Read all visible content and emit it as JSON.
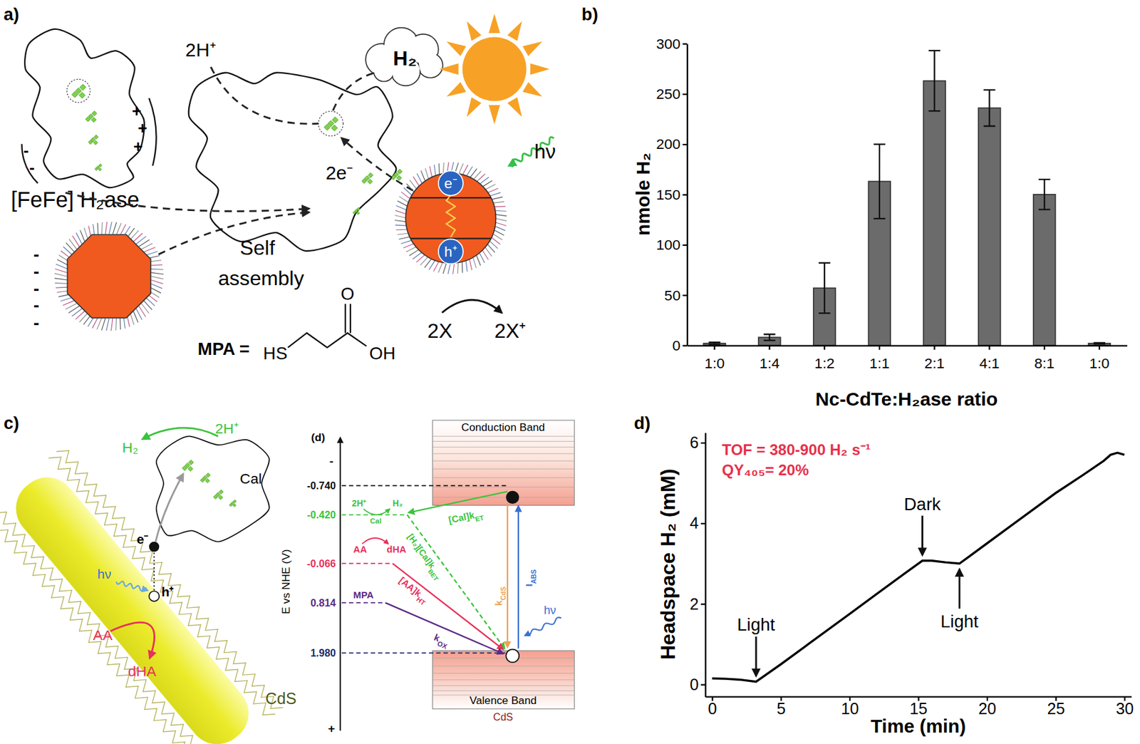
{
  "panel_labels": [
    "a)",
    "b)",
    "c)",
    "d)"
  ],
  "chart_data": [
    {
      "type": "bar",
      "categories": [
        "1:0",
        "1:4",
        "1:2",
        "1:1",
        "2:1",
        "4:1",
        "8:1",
        "1:0"
      ],
      "values": [
        2,
        8,
        57,
        163,
        263,
        236,
        150,
        2
      ],
      "errors": [
        1,
        3,
        25,
        37,
        30,
        18,
        15,
        0.5
      ],
      "color": "#6b6b6b",
      "x_label": "Nc-CdTe:H₂ase ratio",
      "y_label": "nmole H₂",
      "ylim": [
        0,
        300
      ],
      "yticks": [
        0,
        50,
        100,
        150,
        200,
        250,
        300
      ]
    },
    {
      "type": "line",
      "x": [
        0,
        1,
        2,
        3.2,
        5,
        7,
        10,
        12,
        14,
        15.3,
        16,
        17,
        18,
        20,
        22,
        25,
        27,
        28.5,
        29,
        29.5,
        30
      ],
      "values": [
        0.15,
        0.14,
        0.12,
        0.07,
        0.5,
        1.0,
        1.75,
        2.25,
        2.75,
        3.07,
        3.07,
        3.03,
        3.0,
        3.5,
        4.0,
        4.75,
        5.2,
        5.55,
        5.7,
        5.75,
        5.7
      ],
      "color": "#000000",
      "x_label": "Time (min)",
      "y_label": "Headspace H₂ (mM)",
      "xlim": [
        -0.5,
        30.5
      ],
      "ylim": [
        -0.3,
        6.25
      ],
      "xticks": [
        0,
        5,
        10,
        15,
        20,
        25,
        30
      ],
      "yticks": [
        0,
        2,
        4,
        6
      ],
      "annotations": [
        {
          "text": "Light",
          "x": 3.2,
          "y": 0.07
        },
        {
          "text": "Dark",
          "x": 15.3,
          "y": 3.07
        },
        {
          "text": "Light",
          "x": 18,
          "y": 3.0
        }
      ],
      "notes": [
        "TOF = 380-900 H₂ s⁻¹",
        "QY₄₀₅= 20%"
      ]
    }
  ],
  "diagram_a": {
    "enzyme": "[FeFe] H₂ase",
    "enzyme_charges": [
      "+",
      "+",
      "+",
      "-",
      "-"
    ],
    "particle_charges": [
      "-",
      "-",
      "-",
      "-",
      "-"
    ],
    "assembly": [
      "Self",
      "assembly"
    ],
    "protons": "2H⁺",
    "product": "H₂",
    "electrons": "2e⁻",
    "electron": "e⁻",
    "hole": "h⁺",
    "photon": "hν",
    "donor": "2X",
    "donor_oxidized": "2X⁺",
    "ligand_label": "MPA =",
    "ligand_atoms": [
      "HS",
      "O",
      "OH"
    ]
  },
  "diagram_c": {
    "product": "H₂",
    "protons": "2H⁺",
    "enzyme": "Cal",
    "electron": "e⁻",
    "photon": "hν",
    "hole": "h⁺",
    "donor": "AA",
    "donor_oxidized": "dHA",
    "rod": "CdS",
    "energy": {
      "tag": "(d)",
      "axis_label": "E vs NHE (V)",
      "axis_ends": [
        "-",
        "+"
      ],
      "levels": [
        "-0.740",
        "-0.420",
        "-0.066",
        "0.814",
        "1.980"
      ],
      "conduction_band": "Conduction Band",
      "valence_band": "Valence Band",
      "material": "CdS",
      "enzyme_reaction": [
        "2H⁺",
        "Cal",
        "H₂"
      ],
      "donor_reaction": [
        "AA",
        "dHA"
      ],
      "ligand": "MPA",
      "photon": "hν",
      "rates": [
        {
          "base": "[Cal]k",
          "sub": "ET"
        },
        {
          "base": "[H₂][Cal]k",
          "sub": "BET"
        },
        {
          "base": "[AA]k",
          "sub": "HT"
        },
        {
          "base": "k",
          "sub": "OX"
        },
        {
          "base": "k",
          "sub": "CdS"
        },
        {
          "base": "I",
          "sub": "ABS"
        }
      ]
    }
  }
}
